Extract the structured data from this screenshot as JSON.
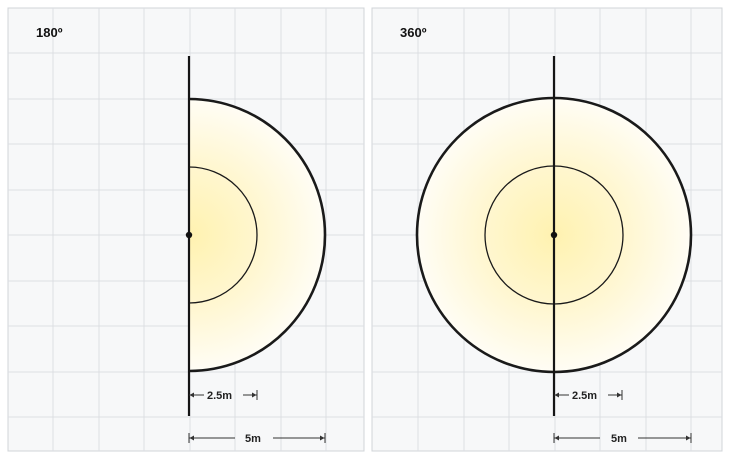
{
  "panels": [
    {
      "title": "180º",
      "coverage": "semicircle",
      "inner_dimension": "2.5m",
      "outer_dimension": "5m"
    },
    {
      "title": "360º",
      "coverage": "circle",
      "inner_dimension": "2.5m",
      "outer_dimension": "5m"
    }
  ],
  "colors": {
    "fill_center": "#fff4b8",
    "fill_edge": "#fffdf3",
    "grid": "#dcdfe3",
    "panel_background": "#f7f8f9",
    "stroke": "#151515"
  }
}
